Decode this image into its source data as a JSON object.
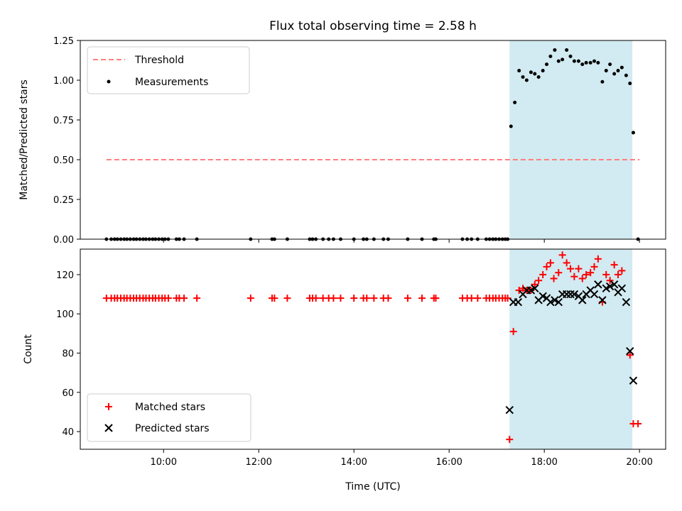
{
  "chart_data": [
    {
      "type": "scatter",
      "title": "Flux total observing time = 2.58 h",
      "ylabel": "Matched/Predicted stars",
      "xlabel": "",
      "xlim": [
        8.25,
        20.55
      ],
      "ylim": [
        0,
        1.25
      ],
      "yticks": [
        0.0,
        0.25,
        0.5,
        0.75,
        1.0,
        1.25
      ],
      "ytick_labels": [
        "0.00",
        "0.25",
        "0.50",
        "0.75",
        "1.00",
        "1.25"
      ],
      "xticks": [
        10,
        12,
        14,
        16,
        18,
        20
      ],
      "legend_position": "top-left",
      "shaded_span": {
        "x": [
          17.27,
          19.85
        ],
        "color": "#add8e6"
      },
      "threshold": {
        "name": "Threshold",
        "value": 0.5,
        "x": [
          8.8,
          20.0
        ],
        "color": "#ff7f7f"
      },
      "series": [
        {
          "name": "Measurements",
          "color": "#000000",
          "x": [
            8.8,
            8.9,
            8.97,
            9.03,
            9.1,
            9.17,
            9.23,
            9.3,
            9.37,
            9.43,
            9.5,
            9.57,
            9.63,
            9.7,
            9.77,
            9.83,
            9.9,
            9.97,
            10.03,
            10.1,
            10.27,
            10.33,
            10.43,
            10.7,
            11.83,
            12.28,
            12.33,
            12.6,
            13.07,
            13.13,
            13.2,
            13.35,
            13.47,
            13.57,
            13.72,
            14.0,
            14.2,
            14.27,
            14.42,
            14.62,
            14.72,
            15.13,
            15.43,
            15.68,
            15.72,
            16.28,
            16.38,
            16.47,
            16.6,
            16.78,
            16.85,
            16.92,
            16.98,
            17.05,
            17.12,
            17.18,
            17.23,
            17.3,
            17.38,
            17.47,
            17.55,
            17.63,
            17.72,
            17.8,
            17.88,
            17.97,
            18.05,
            18.13,
            18.22,
            18.3,
            18.38,
            18.47,
            18.55,
            18.63,
            18.72,
            18.8,
            18.88,
            18.97,
            19.05,
            19.13,
            19.22,
            19.3,
            19.38,
            19.47,
            19.55,
            19.63,
            19.72,
            19.8,
            19.87,
            19.97
          ],
          "y": [
            0,
            0,
            0,
            0,
            0,
            0,
            0,
            0,
            0,
            0,
            0,
            0,
            0,
            0,
            0,
            0,
            0,
            0,
            0,
            0,
            0,
            0,
            0,
            0,
            0,
            0,
            0,
            0,
            0,
            0,
            0,
            0,
            0,
            0,
            0,
            0,
            0,
            0,
            0,
            0,
            0,
            0,
            0,
            0,
            0,
            0,
            0,
            0,
            0,
            0,
            0,
            0,
            0,
            0,
            0,
            0,
            0,
            0.71,
            0.86,
            1.06,
            1.02,
            1.0,
            1.05,
            1.04,
            1.02,
            1.06,
            1.1,
            1.15,
            1.19,
            1.12,
            1.13,
            1.19,
            1.15,
            1.12,
            1.12,
            1.1,
            1.11,
            1.11,
            1.12,
            1.11,
            0.99,
            1.06,
            1.1,
            1.04,
            1.06,
            1.08,
            1.03,
            0.98,
            0.67,
            0
          ]
        }
      ]
    },
    {
      "type": "scatter",
      "title": "",
      "xlabel": "Time (UTC)",
      "ylabel": "Count",
      "xlim": [
        8.25,
        20.55
      ],
      "ylim": [
        31,
        133
      ],
      "yticks": [
        40,
        60,
        80,
        100,
        120
      ],
      "xticks": [
        10,
        12,
        14,
        16,
        18,
        20
      ],
      "xtick_labels": [
        "10:00",
        "12:00",
        "14:00",
        "16:00",
        "18:00",
        "20:00"
      ],
      "legend_position": "bottom-left",
      "shaded_span": {
        "x": [
          17.27,
          19.85
        ],
        "color": "#add8e6"
      },
      "series": [
        {
          "name": "Matched stars",
          "marker": "+",
          "color": "#ff0000",
          "x": [
            8.8,
            8.9,
            8.97,
            9.03,
            9.1,
            9.17,
            9.23,
            9.3,
            9.37,
            9.43,
            9.5,
            9.57,
            9.63,
            9.7,
            9.77,
            9.83,
            9.9,
            9.97,
            10.03,
            10.1,
            10.27,
            10.33,
            10.43,
            10.7,
            11.83,
            12.28,
            12.33,
            12.6,
            13.07,
            13.13,
            13.2,
            13.35,
            13.47,
            13.57,
            13.72,
            14.0,
            14.2,
            14.27,
            14.42,
            14.62,
            14.72,
            15.13,
            15.43,
            15.68,
            15.72,
            16.28,
            16.38,
            16.47,
            16.6,
            16.78,
            16.85,
            16.92,
            16.98,
            17.05,
            17.12,
            17.18,
            17.23,
            17.27,
            17.35,
            17.47,
            17.55,
            17.63,
            17.72,
            17.8,
            17.88,
            17.97,
            18.05,
            18.13,
            18.2,
            18.3,
            18.38,
            18.47,
            18.55,
            18.63,
            18.72,
            18.8,
            18.88,
            18.97,
            19.05,
            19.13,
            19.22,
            19.3,
            19.38,
            19.47,
            19.55,
            19.63,
            19.8,
            19.87,
            19.97
          ],
          "y": [
            108,
            108,
            108,
            108,
            108,
            108,
            108,
            108,
            108,
            108,
            108,
            108,
            108,
            108,
            108,
            108,
            108,
            108,
            108,
            108,
            108,
            108,
            108,
            108,
            108,
            108,
            108,
            108,
            108,
            108,
            108,
            108,
            108,
            108,
            108,
            108,
            108,
            108,
            108,
            108,
            108,
            108,
            108,
            108,
            108,
            108,
            108,
            108,
            108,
            108,
            108,
            108,
            108,
            108,
            108,
            108,
            108,
            36,
            91,
            112,
            113,
            112,
            112,
            115,
            117,
            120,
            124,
            126,
            118,
            121,
            130,
            126,
            123,
            119,
            123,
            118,
            120,
            121,
            124,
            128,
            106,
            120,
            117,
            125,
            120,
            122,
            79,
            44,
            44
          ]
        },
        {
          "name": "Predicted stars",
          "marker": "x",
          "color": "#000000",
          "x": [
            17.27,
            17.35,
            17.45,
            17.55,
            17.63,
            17.72,
            17.8,
            17.88,
            17.97,
            18.05,
            18.13,
            18.22,
            18.3,
            18.38,
            18.47,
            18.55,
            18.63,
            18.72,
            18.8,
            18.88,
            18.97,
            19.05,
            19.13,
            19.22,
            19.3,
            19.38,
            19.47,
            19.55,
            19.63,
            19.72,
            19.8,
            19.87
          ],
          "y": [
            51,
            106,
            106,
            110,
            112,
            112,
            113,
            107,
            109,
            108,
            106,
            107,
            106,
            110,
            110,
            110,
            110,
            109,
            107,
            110,
            112,
            110,
            115,
            107,
            113,
            114,
            115,
            111,
            113,
            106,
            81,
            66
          ]
        }
      ]
    }
  ]
}
